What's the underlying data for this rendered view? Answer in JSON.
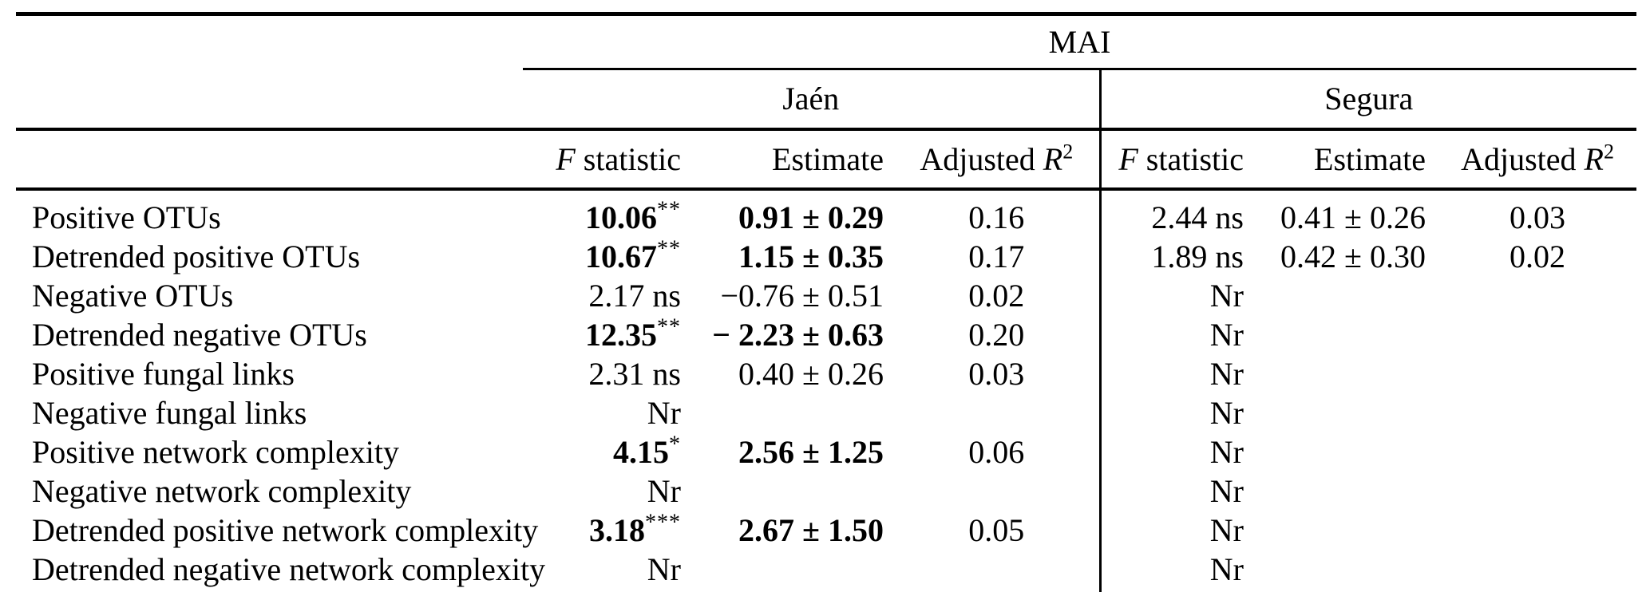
{
  "table": {
    "group_header": "MAI",
    "region_jaen": "Jaén",
    "region_segura": "Segura",
    "col_f_italic": "F",
    "col_f_rest": " statistic",
    "col_estimate": "Estimate",
    "col_adjusted": "Adjusted ",
    "col_r_italic": "R",
    "col_r_sup": "2",
    "nr_label": "Nr",
    "ns_label": "ns",
    "rows": [
      {
        "label": "Positive OTUs",
        "jaen": {
          "f": "10.06",
          "stars": "**",
          "bold": true,
          "est": "0.91 ± 0.29",
          "r2": "0.16"
        },
        "segura": {
          "f": "2.44",
          "ns": true,
          "est": "0.41 ± 0.26",
          "r2": "0.03"
        }
      },
      {
        "label": "Detrended positive OTUs",
        "jaen": {
          "f": "10.67",
          "stars": "**",
          "bold": true,
          "est": "1.15 ± 0.35",
          "r2": "0.17"
        },
        "segura": {
          "f": "1.89",
          "ns": true,
          "est": "0.42 ± 0.30",
          "r2": "0.02"
        }
      },
      {
        "label": "Negative OTUs",
        "jaen": {
          "f": "2.17",
          "ns": true,
          "est": "−0.76 ± 0.51",
          "r2": "0.02"
        },
        "segura": {
          "nr": true
        }
      },
      {
        "label": "Detrended negative OTUs",
        "jaen": {
          "f": "12.35",
          "stars": "**",
          "bold": true,
          "est": "− 2.23 ± 0.63",
          "r2": "0.20"
        },
        "segura": {
          "nr": true
        }
      },
      {
        "label": "Positive fungal links",
        "jaen": {
          "f": "2.31",
          "ns": true,
          "est": "0.40 ± 0.26",
          "r2": "0.03"
        },
        "segura": {
          "nr": true
        }
      },
      {
        "label": "Negative fungal links",
        "jaen": {
          "nr": true
        },
        "segura": {
          "nr": true
        }
      },
      {
        "label": "Positive network complexity",
        "jaen": {
          "f": "4.15",
          "stars": "*",
          "bold": true,
          "est": "2.56 ± 1.25",
          "r2": "0.06"
        },
        "segura": {
          "nr": true
        }
      },
      {
        "label": "Negative network complexity",
        "jaen": {
          "nr": true
        },
        "segura": {
          "nr": true
        }
      },
      {
        "label": "Detrended positive network complexity",
        "jaen": {
          "f": "3.18",
          "stars": "***",
          "bold": true,
          "est": "2.67 ± 1.50",
          "r2": "0.05"
        },
        "segura": {
          "nr": true
        }
      },
      {
        "label": "Detrended negative network complexity",
        "jaen": {
          "nr": true
        },
        "segura": {
          "nr": true
        }
      }
    ]
  }
}
